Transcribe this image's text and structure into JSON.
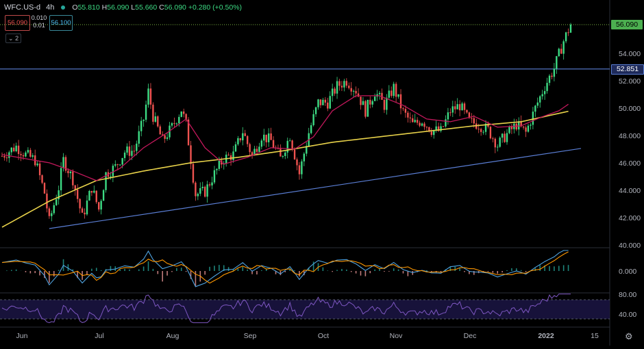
{
  "header": {
    "symbol": "WFC.US-d",
    "timeframe": "4h",
    "ohlc": {
      "open_label": "O",
      "open": "55.810",
      "high_label": "H",
      "high": "56.090",
      "low_label": "L",
      "low": "55.660",
      "close_label": "C",
      "close": "56.090",
      "change": "+0.280 (+0.50%)"
    }
  },
  "trade_panel": {
    "sell_price": "56.090",
    "spread_top": "0.010",
    "spread_bottom": "0.01",
    "buy_price": "56.100",
    "indicators_collapse": "2"
  },
  "price_axis": {
    "ticks": [
      "54.000",
      "52.000",
      "50.000",
      "48.000",
      "46.000",
      "44.000",
      "42.000",
      "40.000"
    ],
    "current_price_tag": "56.090",
    "horizontal_level_tag": "52.851"
  },
  "macd_axis": {
    "ticks": [
      "0.000"
    ]
  },
  "rsi_axis": {
    "ticks": [
      "80.00",
      "40.00"
    ]
  },
  "time_axis": {
    "labels": [
      "Jun",
      "Jul",
      "Aug",
      "Sep",
      "Oct",
      "Nov",
      "Dec",
      "2022",
      "15"
    ]
  },
  "colors": {
    "background": "#000000",
    "up_candle": "#3ddc84",
    "down_candle": "#ef5350",
    "ma_fast": "#c2185b",
    "ma_slow": "#e8d24a",
    "trendline": "#5b7fd6",
    "horizontal_level": "#5b7fd6",
    "macd": "#4fa3e0",
    "signal": "#ff9800",
    "rsi": "#7e57c2"
  },
  "chart_data": {
    "type": "candlestick",
    "symbol": "WFC.US-d",
    "interval": "4h",
    "ylim": [
      40,
      56.5
    ],
    "key_price_path": [
      [
        0,
        46.5
      ],
      [
        6,
        47.2
      ],
      [
        10,
        46.6
      ],
      [
        14,
        46.2
      ],
      [
        18,
        43.8
      ],
      [
        20,
        41.7
      ],
      [
        24,
        44.2
      ],
      [
        26,
        46.2
      ],
      [
        30,
        44.8
      ],
      [
        34,
        42.0
      ],
      [
        38,
        44.2
      ],
      [
        41,
        42.6
      ],
      [
        44,
        45.2
      ],
      [
        48,
        45.7
      ],
      [
        52,
        46.8
      ],
      [
        56,
        46.9
      ],
      [
        60,
        49.2
      ],
      [
        62,
        51.2
      ],
      [
        64,
        49.4
      ],
      [
        68,
        47.6
      ],
      [
        72,
        48.6
      ],
      [
        76,
        49.9
      ],
      [
        78,
        48.8
      ],
      [
        82,
        43.7
      ],
      [
        86,
        43.9
      ],
      [
        90,
        45.2
      ],
      [
        94,
        46.3
      ],
      [
        98,
        46.6
      ],
      [
        102,
        48.3
      ],
      [
        106,
        46.5
      ],
      [
        110,
        48.0
      ],
      [
        114,
        47.6
      ],
      [
        118,
        46.3
      ],
      [
        122,
        48.0
      ],
      [
        126,
        45.2
      ],
      [
        130,
        48.2
      ],
      [
        134,
        50.4
      ],
      [
        138,
        50.4
      ],
      [
        142,
        51.6
      ],
      [
        146,
        52.0
      ],
      [
        150,
        51.3
      ],
      [
        154,
        49.8
      ],
      [
        158,
        51.2
      ],
      [
        162,
        50.2
      ],
      [
        166,
        51.5
      ],
      [
        170,
        49.7
      ],
      [
        174,
        48.8
      ],
      [
        178,
        49.1
      ],
      [
        182,
        48.4
      ],
      [
        186,
        48.3
      ],
      [
        190,
        49.8
      ],
      [
        194,
        50.2
      ],
      [
        198,
        49.0
      ],
      [
        202,
        48.8
      ],
      [
        206,
        48.4
      ],
      [
        210,
        47.3
      ],
      [
        214,
        48.1
      ],
      [
        218,
        48.8
      ],
      [
        222,
        48.2
      ],
      [
        226,
        50.0
      ],
      [
        230,
        51.6
      ],
      [
        234,
        52.9
      ],
      [
        238,
        54.9
      ],
      [
        241,
        56.09
      ]
    ],
    "ma_fast_path": [
      [
        0,
        46.6
      ],
      [
        20,
        46.0
      ],
      [
        30,
        45.4
      ],
      [
        40,
        44.7
      ],
      [
        50,
        45.6
      ],
      [
        60,
        47.1
      ],
      [
        70,
        48.2
      ],
      [
        78,
        49.2
      ],
      [
        86,
        47.1
      ],
      [
        94,
        45.9
      ],
      [
        104,
        46.4
      ],
      [
        114,
        47.1
      ],
      [
        124,
        47.0
      ],
      [
        132,
        47.9
      ],
      [
        140,
        49.8
      ],
      [
        150,
        50.9
      ],
      [
        160,
        50.9
      ],
      [
        170,
        50.2
      ],
      [
        180,
        49.2
      ],
      [
        190,
        49.0
      ],
      [
        200,
        49.4
      ],
      [
        210,
        48.6
      ],
      [
        220,
        48.7
      ],
      [
        228,
        49.3
      ],
      [
        236,
        49.8
      ],
      [
        241,
        50.4
      ]
    ],
    "ma_slow_path": [
      [
        0,
        41.3
      ],
      [
        20,
        43.2
      ],
      [
        40,
        44.7
      ],
      [
        60,
        45.4
      ],
      [
        80,
        46.0
      ],
      [
        100,
        46.4
      ],
      [
        120,
        46.9
      ],
      [
        140,
        47.5
      ],
      [
        160,
        47.9
      ],
      [
        180,
        48.3
      ],
      [
        200,
        48.7
      ],
      [
        220,
        49.0
      ],
      [
        241,
        49.8
      ]
    ],
    "trendline": {
      "from": [
        20,
        41.2
      ],
      "to": [
        241,
        47.1
      ]
    },
    "horizontal_level": 52.851,
    "current_price": 56.09,
    "rsi_levels": [
      70,
      30
    ],
    "xlabel": "",
    "ylabel": ""
  }
}
